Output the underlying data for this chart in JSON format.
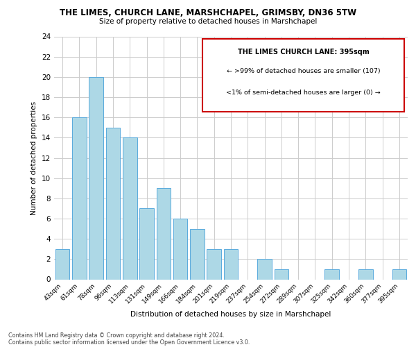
{
  "title": "THE LIMES, CHURCH LANE, MARSHCHAPEL, GRIMSBY, DN36 5TW",
  "subtitle": "Size of property relative to detached houses in Marshchapel",
  "xlabel": "Distribution of detached houses by size in Marshchapel",
  "ylabel": "Number of detached properties",
  "bar_color": "#add8e6",
  "bar_edge_color": "#5aaadd",
  "categories": [
    "43sqm",
    "61sqm",
    "78sqm",
    "96sqm",
    "113sqm",
    "131sqm",
    "149sqm",
    "166sqm",
    "184sqm",
    "201sqm",
    "219sqm",
    "237sqm",
    "254sqm",
    "272sqm",
    "289sqm",
    "307sqm",
    "325sqm",
    "342sqm",
    "360sqm",
    "377sqm",
    "395sqm"
  ],
  "values": [
    3,
    16,
    20,
    15,
    14,
    7,
    9,
    6,
    5,
    3,
    3,
    0,
    2,
    1,
    0,
    0,
    1,
    0,
    1,
    0,
    1
  ],
  "ylim": [
    0,
    24
  ],
  "yticks": [
    0,
    2,
    4,
    6,
    8,
    10,
    12,
    14,
    16,
    18,
    20,
    22,
    24
  ],
  "annotation_title": "THE LIMES CHURCH LANE: 395sqm",
  "annotation_line1": "← >99% of detached houses are smaller (107)",
  "annotation_line2": "<1% of semi-detached houses are larger (0) →",
  "annotation_box_color": "#ffffff",
  "annotation_border_color": "#cc0000",
  "footer_line1": "Contains HM Land Registry data © Crown copyright and database right 2024.",
  "footer_line2": "Contains public sector information licensed under the Open Government Licence v3.0.",
  "bg_color": "#ffffff",
  "grid_color": "#cccccc"
}
